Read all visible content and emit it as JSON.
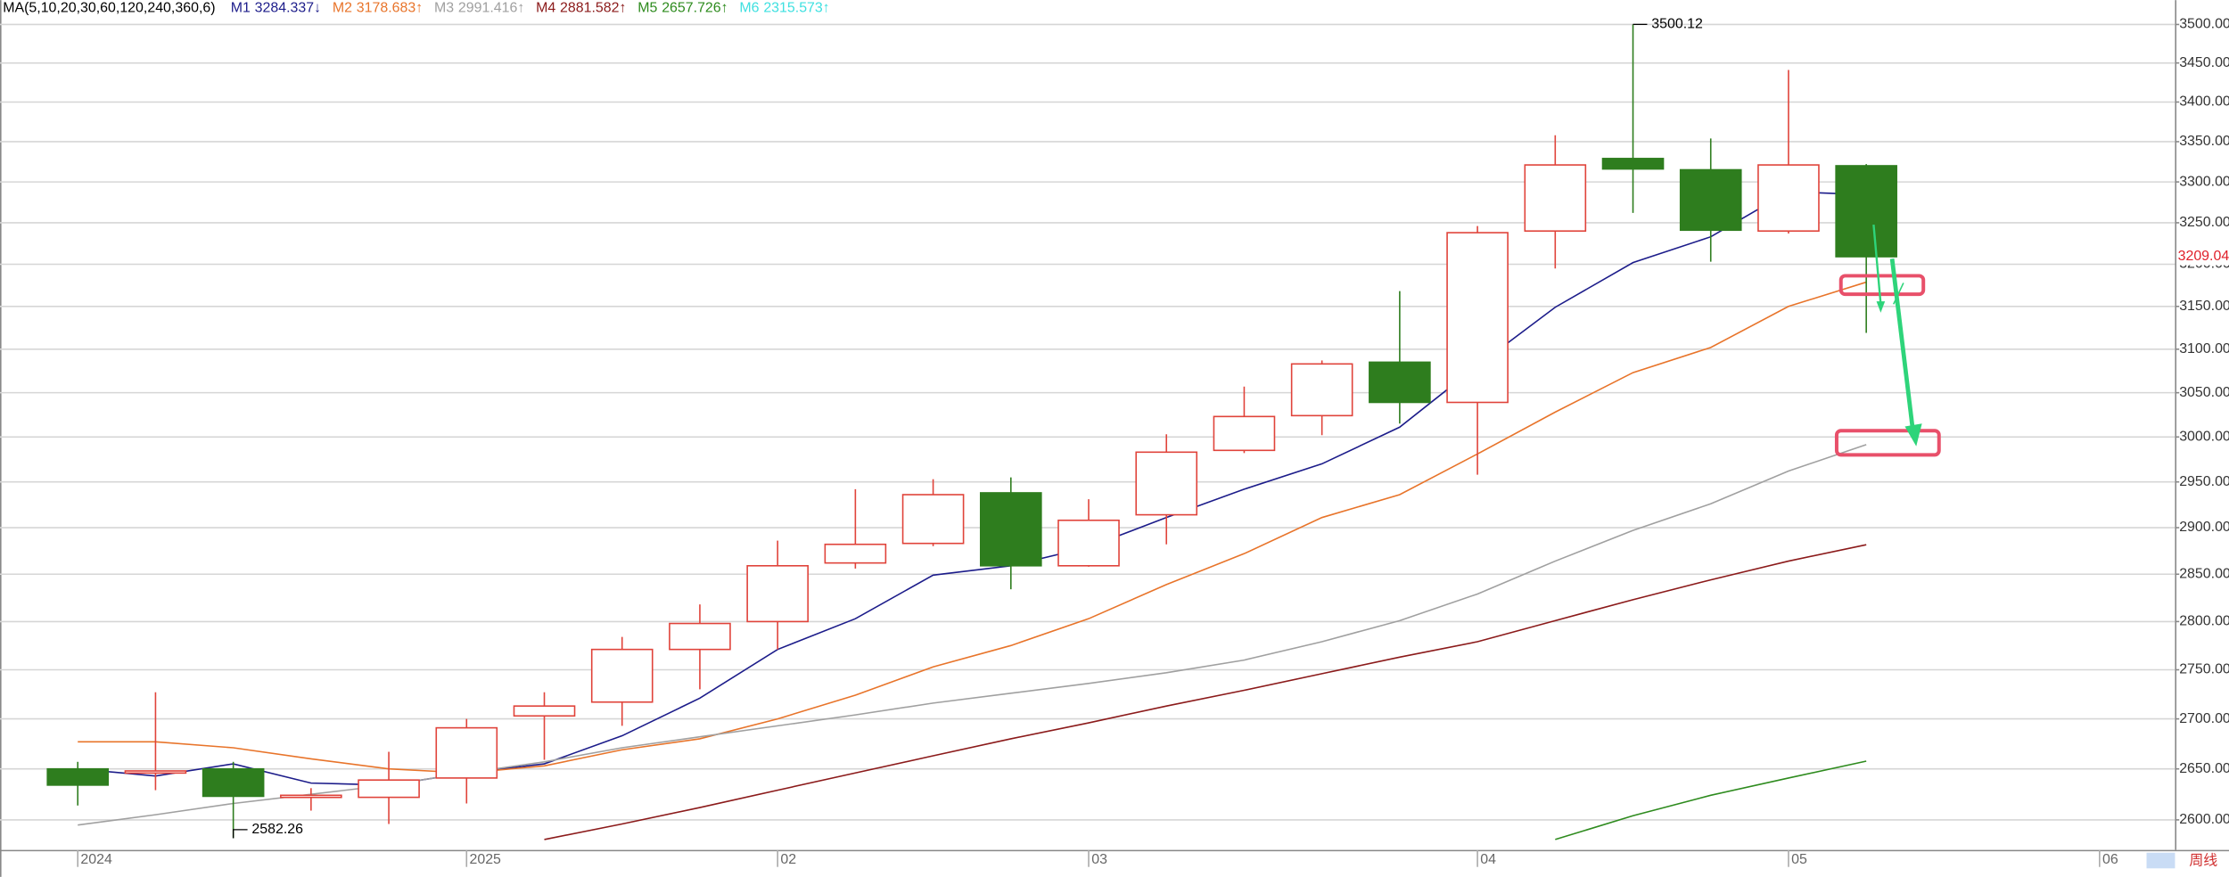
{
  "chart_data": {
    "type": "candlestick",
    "legend_title": "MA(5,10,20,30,60,120,240,360,6)",
    "x": [
      0,
      1,
      2,
      3,
      4,
      5,
      6,
      7,
      8,
      9,
      10,
      11,
      12,
      13,
      14,
      15,
      16,
      17,
      18,
      19,
      20,
      21,
      22,
      23
    ],
    "open": [
      2650,
      2646,
      2650,
      2622,
      2622,
      2641,
      2703,
      2717,
      2771,
      2800,
      2862,
      2883,
      2938,
      2859,
      2914,
      2985,
      3024,
      3085,
      3039,
      3240,
      3329,
      3315,
      3240,
      3320
    ],
    "high": [
      2657,
      2727,
      2657,
      2631,
      2667,
      2700,
      2727,
      2784,
      2818,
      2886,
      2942,
      2953,
      2955,
      2931,
      3003,
      3057,
      3087,
      3168,
      3246,
      3358,
      3500.12,
      3354,
      3441,
      3322
    ],
    "low": [
      2614,
      2629,
      2582.26,
      2609,
      2596,
      2616,
      2659,
      2693,
      2730,
      2771,
      2856,
      2880,
      2834,
      2858,
      2882,
      2982,
      3002,
      3015,
      2958,
      3195,
      3262,
      3203,
      3237,
      3119
    ],
    "close": [
      2634,
      2648,
      2623,
      2624,
      2639,
      2691,
      2713,
      2771,
      2798,
      2859,
      2882,
      2936,
      2859,
      2908,
      2983,
      3023,
      3083,
      3039,
      3238,
      3321,
      3316,
      3241,
      3321,
      3209.04
    ],
    "up_color": "#e0433a",
    "down_color": "#2e7d1e",
    "series": [
      {
        "name": "M1",
        "legend_value": "3284.337↓",
        "color": "#1c1c8a",
        "values": [
          2650,
          2643,
          2655,
          2636,
          2634,
          2646,
          2655,
          2683,
          2721,
          2771,
          2803,
          2849,
          2859,
          2879,
          2911,
          2942,
          2970,
          3011,
          3081,
          3149,
          3202,
          3233,
          3288,
          3284.337
        ]
      },
      {
        "name": "M2",
        "legend_value": "3178.683↑",
        "color": "#e8742a",
        "values": [
          2677,
          2677,
          2671,
          2660,
          2650,
          2646,
          2653,
          2669,
          2680,
          2700,
          2724,
          2753,
          2775,
          2803,
          2839,
          2872,
          2911,
          2936,
          2981,
          3028,
          3073,
          3102,
          3150,
          3178.683
        ]
      },
      {
        "name": "M3",
        "legend_value": "2991.416↑",
        "color": "#a0a0a0",
        "values": [
          2595,
          2605,
          2616,
          2625,
          2634,
          2646,
          2657,
          2671,
          2682,
          2693,
          2704,
          2716,
          2726,
          2736,
          2747,
          2760,
          2779,
          2801,
          2829,
          2864,
          2897,
          2926,
          2962,
          2991.416
        ]
      },
      {
        "name": "M4",
        "legend_value": "2881.582↑",
        "color": "#8b1a1a",
        "values": [
          null,
          null,
          null,
          null,
          null,
          null,
          2581,
          2596,
          2612,
          2629,
          2646,
          2663,
          2680,
          2696,
          2713,
          2729,
          2746,
          2763,
          2779,
          2801,
          2823,
          2844,
          2864,
          2881.582
        ]
      },
      {
        "name": "M5",
        "legend_value": "2657.726↑",
        "color": "#2e8b1e",
        "values": [
          null,
          null,
          null,
          null,
          null,
          null,
          null,
          null,
          null,
          null,
          null,
          null,
          null,
          null,
          null,
          null,
          null,
          null,
          null,
          2581,
          2604,
          2624,
          2641,
          2657.726
        ]
      },
      {
        "name": "M6",
        "legend_value": "2315.573↑",
        "color": "#3ee0e0",
        "values": [
          null,
          null,
          null,
          null,
          null,
          null,
          null,
          null,
          null,
          null,
          null,
          null,
          null,
          null,
          null,
          null,
          null,
          null,
          null,
          null,
          null,
          null,
          null,
          null
        ]
      }
    ],
    "log_scale": true,
    "ylim": [
      2571,
      3532
    ],
    "yticks": [
      {
        "value": 2600,
        "label": "2600.00"
      },
      {
        "value": 2650,
        "label": "2650.00"
      },
      {
        "value": 2700,
        "label": "2700.00"
      },
      {
        "value": 2750,
        "label": "2750.00"
      },
      {
        "value": 2800,
        "label": "2800.00"
      },
      {
        "value": 2850,
        "label": "2850.00"
      },
      {
        "value": 2900,
        "label": "2900.00"
      },
      {
        "value": 2950,
        "label": "2950.00"
      },
      {
        "value": 3000,
        "label": "3000.00"
      },
      {
        "value": 3050,
        "label": "3050.00"
      },
      {
        "value": 3100,
        "label": "3100.00"
      },
      {
        "value": 3150,
        "label": "3150.00"
      },
      {
        "value": 3200,
        "label": "3200.00"
      },
      {
        "value": 3250,
        "label": "3250.00"
      },
      {
        "value": 3300,
        "label": "3300.00"
      },
      {
        "value": 3350,
        "label": "3350.00"
      },
      {
        "value": 3400,
        "label": "3400.00"
      },
      {
        "value": 3450,
        "label": "3450.00"
      },
      {
        "value": 3500,
        "label": "3500.00"
      }
    ],
    "xlim": [
      -1,
      26.97
    ],
    "xticks": [
      {
        "value": 0,
        "label": "2024"
      },
      {
        "value": 5,
        "label": "2025"
      },
      {
        "value": 9,
        "label": "02"
      },
      {
        "value": 13,
        "label": "03"
      },
      {
        "value": 18,
        "label": "04"
      },
      {
        "value": 22,
        "label": "05"
      },
      {
        "value": 26,
        "label": "06"
      }
    ],
    "grid": true,
    "annotations": [
      {
        "label": "3500.12",
        "value": 3500.12,
        "x": 20,
        "side": "top"
      },
      {
        "label": "2582.26",
        "value": 2582.26,
        "x": 2,
        "side": "bottom"
      }
    ],
    "last_price": {
      "label": "3209.04",
      "value": 3209.04,
      "color": "#e0202a"
    },
    "period_tab": "周线"
  }
}
